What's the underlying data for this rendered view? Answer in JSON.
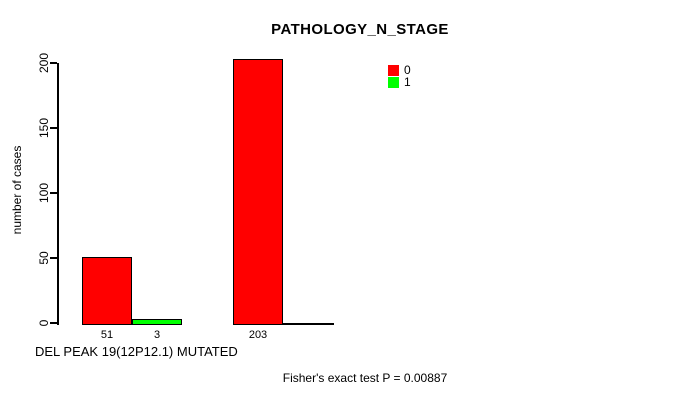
{
  "chart_data": {
    "type": "bar",
    "title": "PATHOLOGY_N_STAGE",
    "xlabel": "DEL PEAK 19(12P12.1) MUTATED",
    "ylabel": "number of cases",
    "footer_annotation": "Fisher's exact test P = 0.00887",
    "ylim": [
      0,
      200
    ],
    "yticks": [
      0,
      50,
      100,
      150,
      200
    ],
    "grid": false,
    "legend_position": "top-right",
    "categories": [
      "",
      ""
    ],
    "series": [
      {
        "name": "0",
        "color": "#ff0000",
        "values": [
          51,
          203
        ]
      },
      {
        "name": "1",
        "color": "#00ff00",
        "values": [
          3,
          0
        ]
      }
    ],
    "visible_value_labels": [
      "51",
      "3",
      "203"
    ]
  },
  "colors": {
    "background": "#ffffff",
    "axis": "#000000",
    "bar_border": "#000000",
    "text": "#000000"
  }
}
